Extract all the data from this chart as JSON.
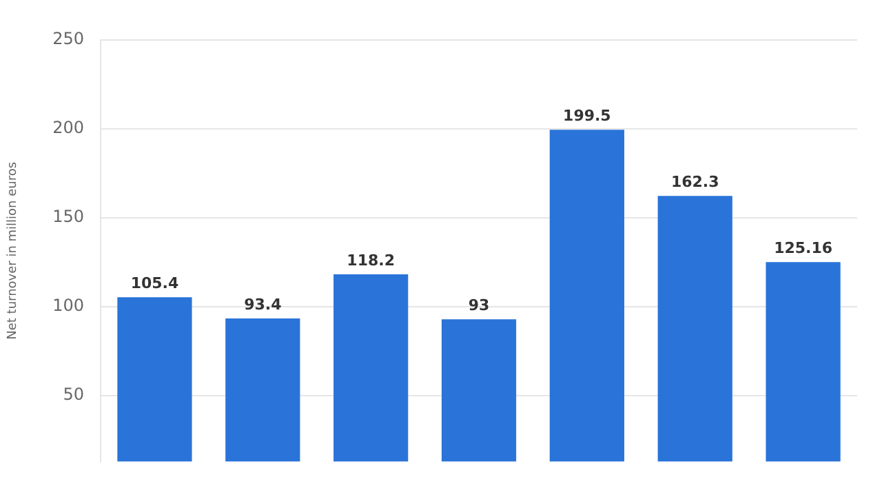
{
  "chart_data": {
    "type": "bar",
    "ylabel": "Net turnover in million euros",
    "categories": [
      null,
      null,
      null,
      null,
      null,
      null,
      null
    ],
    "values": [
      105.4,
      93.4,
      118.2,
      93,
      199.5,
      162.3,
      125.16
    ],
    "color": "#2a74d9",
    "ylim": [
      13,
      250
    ],
    "yticks": [
      50,
      100,
      150,
      200,
      250
    ],
    "grid": "y",
    "data_labels": true,
    "tick_labels": "y",
    "legend": false
  }
}
